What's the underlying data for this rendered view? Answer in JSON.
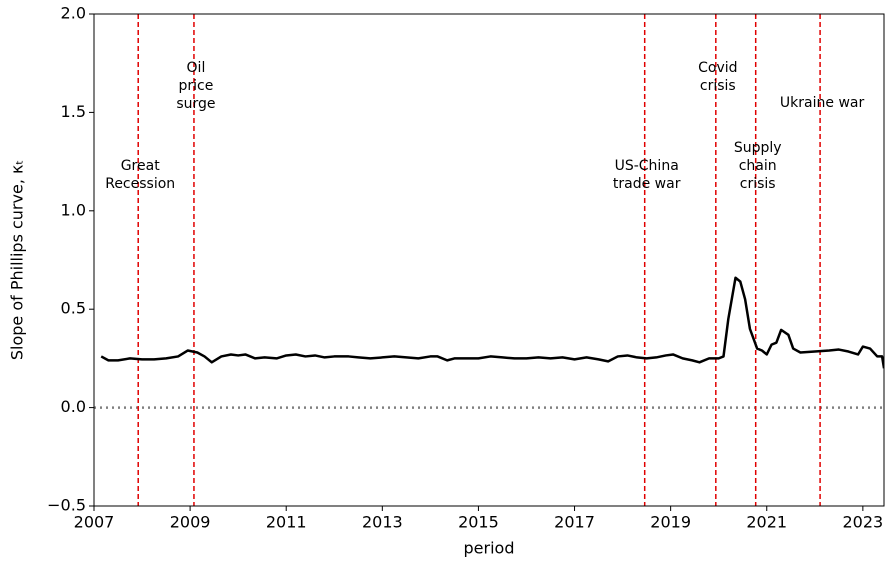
{
  "chart_data": {
    "type": "line",
    "xlabel": "period",
    "ylabel": "Slope of Phillips curve, κₜ",
    "xlim": [
      2007,
      2023.44
    ],
    "ylim": [
      -0.5,
      2.0
    ],
    "xticks": [
      2007,
      2009,
      2011,
      2013,
      2015,
      2017,
      2019,
      2021,
      2023
    ],
    "yticks": [
      {
        "value": -0.5,
        "label": "−0.5"
      },
      {
        "value": 0,
        "label": "0.0"
      },
      0.5,
      {
        "value": 1,
        "label": "1.0"
      },
      1.5,
      {
        "value": 2,
        "label": "2.0"
      }
    ],
    "hline": {
      "y": 0,
      "color": "#808080"
    },
    "event_color": "#e00000",
    "annotations": [
      {
        "x": 2007.92,
        "lines": [
          "Great",
          "Recession"
        ]
      },
      {
        "x": 2009.08,
        "lines": [
          "Oil",
          "price",
          "surge"
        ]
      },
      {
        "x": 2018.46,
        "lines": [
          "US-China",
          "trade war"
        ]
      },
      {
        "x": 2019.94,
        "lines": [
          "Covid",
          "crisis"
        ]
      },
      {
        "x": 2020.77,
        "lines": [
          "Supply",
          "chain",
          "crisis"
        ]
      },
      {
        "x": 2022.11,
        "lines": [
          "Ukraine war"
        ]
      }
    ],
    "series": [
      {
        "color": "#000000",
        "x": [
          2007.15,
          2007.3,
          2007.5,
          2007.75,
          2008.0,
          2008.25,
          2008.5,
          2008.75,
          2008.95,
          2009.15,
          2009.3,
          2009.45,
          2009.65,
          2009.85,
          2010.0,
          2010.15,
          2010.35,
          2010.55,
          2010.8,
          2011.0,
          2011.2,
          2011.4,
          2011.6,
          2011.8,
          2012.0,
          2012.3,
          2012.5,
          2012.75,
          2013.0,
          2013.25,
          2013.5,
          2013.75,
          2014.0,
          2014.15,
          2014.35,
          2014.5,
          2014.75,
          2015.0,
          2015.25,
          2015.5,
          2015.75,
          2016.0,
          2016.25,
          2016.5,
          2016.75,
          2017.0,
          2017.25,
          2017.5,
          2017.7,
          2017.9,
          2018.1,
          2018.3,
          2018.5,
          2018.7,
          2018.9,
          2019.05,
          2019.25,
          2019.45,
          2019.6,
          2019.8,
          2020.0,
          2020.1,
          2020.2,
          2020.35,
          2020.45,
          2020.55,
          2020.65,
          2020.8,
          2020.9,
          2021.0,
          2021.1,
          2021.2,
          2021.3,
          2021.45,
          2021.55,
          2021.7,
          2022.0,
          2022.3,
          2022.5,
          2022.7,
          2022.9,
          2023.0,
          2023.15,
          2023.3,
          2023.4,
          2023.44
        ],
        "values": [
          0.26,
          0.24,
          0.24,
          0.25,
          0.245,
          0.245,
          0.25,
          0.26,
          0.29,
          0.28,
          0.26,
          0.23,
          0.26,
          0.27,
          0.265,
          0.27,
          0.25,
          0.255,
          0.25,
          0.265,
          0.27,
          0.26,
          0.265,
          0.255,
          0.26,
          0.26,
          0.255,
          0.25,
          0.255,
          0.26,
          0.255,
          0.25,
          0.26,
          0.26,
          0.24,
          0.25,
          0.25,
          0.25,
          0.26,
          0.255,
          0.25,
          0.25,
          0.255,
          0.25,
          0.255,
          0.245,
          0.255,
          0.245,
          0.235,
          0.26,
          0.265,
          0.255,
          0.25,
          0.255,
          0.265,
          0.27,
          0.25,
          0.24,
          0.23,
          0.25,
          0.25,
          0.26,
          0.45,
          0.66,
          0.64,
          0.55,
          0.4,
          0.3,
          0.29,
          0.27,
          0.32,
          0.33,
          0.395,
          0.37,
          0.3,
          0.28,
          0.285,
          0.29,
          0.295,
          0.285,
          0.27,
          0.31,
          0.3,
          0.26,
          0.26,
          0.2
        ]
      }
    ]
  }
}
